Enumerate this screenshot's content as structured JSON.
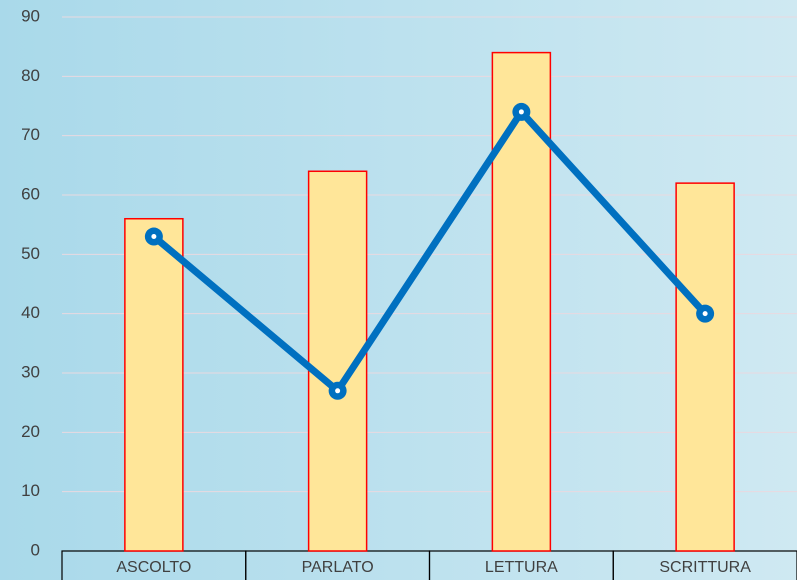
{
  "chart_data": {
    "type": "bar",
    "categories": [
      "ASCOLTO",
      "PARLATO",
      "LETTURA",
      "SCRITTURA"
    ],
    "series": [
      {
        "type": "bar",
        "color": "#ffe699",
        "values": [
          56,
          64,
          84,
          62
        ]
      },
      {
        "type": "line",
        "color": "#0070c0",
        "values": [
          53,
          27,
          74,
          40
        ]
      }
    ],
    "ylim": [
      0,
      90
    ],
    "yticks": [
      0,
      10,
      20,
      30,
      40,
      50,
      60,
      70,
      80,
      90
    ],
    "grid": true
  }
}
